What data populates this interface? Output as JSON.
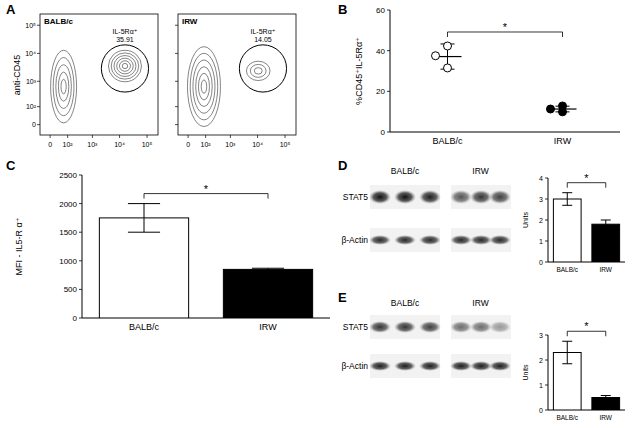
{
  "chart_data": [
    {
      "type": "scatter",
      "panel": "B",
      "categories": [
        "BALB/c",
        "IRW"
      ],
      "values": [
        37.1,
        11.3
      ],
      "errors": [
        6.2,
        1.4
      ],
      "points": [
        [
          42.3,
          37.5,
          31.5
        ],
        [
          12.8,
          11.3,
          9.9
        ]
      ],
      "colors": [
        "#ffffff",
        "#000000"
      ],
      "marker": "circle",
      "ylabel": "%CD45⁺IL-5Rα⁺",
      "ylim": [
        0,
        60
      ],
      "yticks": [
        0,
        20,
        40,
        60
      ],
      "annotations": [
        "*"
      ]
    },
    {
      "type": "bar",
      "panel": "C",
      "categories": [
        "BALB/c",
        "IRW"
      ],
      "values": [
        1750,
        850
      ],
      "errors": [
        250,
        20
      ],
      "colors": [
        "#ffffff",
        "#000000"
      ],
      "ylabel": "MFI - IL5-R α⁺",
      "ylim": [
        0,
        2500
      ],
      "yticks": [
        0,
        500,
        1000,
        1500,
        2000,
        2500
      ],
      "annotations": [
        "*"
      ]
    },
    {
      "type": "bar",
      "categories": [
        "BALB/c",
        "IRW"
      ],
      "values": [
        3.0,
        1.8
      ],
      "errors": [
        0.3,
        0.2
      ],
      "colors": [
        "#ffffff",
        "#000000"
      ],
      "ylabel": "Units",
      "ylim": [
        0,
        4
      ],
      "yticks": [
        0,
        1,
        2,
        3,
        4
      ],
      "annotations": [
        "*"
      ]
    },
    {
      "type": "bar",
      "categories": [
        "BALB/c",
        "IRW"
      ],
      "values": [
        2.3,
        0.5
      ],
      "errors": [
        0.45,
        0.08
      ],
      "colors": [
        "#ffffff",
        "#000000"
      ],
      "ylabel": "Units",
      "ylim": [
        0,
        3
      ],
      "yticks": [
        0,
        1,
        2,
        3
      ],
      "annotations": [
        "*"
      ]
    }
  ],
  "flow_cytometry": {
    "panel": "A",
    "ylabel": "anti-CD45",
    "log": true,
    "xlim": [
      -40,
      250000
    ],
    "ylim": [
      -40,
      250000
    ],
    "xticks": [
      {
        "value": 0,
        "label": "0"
      },
      {
        "value": 100,
        "label": "10²"
      },
      {
        "value": 1000,
        "label": "10³"
      },
      {
        "value": 10000,
        "label": "10⁴"
      },
      {
        "value": 100000,
        "label": "10⁵"
      }
    ],
    "yticks": [
      {
        "value": 0,
        "label": "0"
      },
      {
        "value": 100,
        "label": "10²"
      },
      {
        "value": 1000,
        "label": "10³"
      },
      {
        "value": 10000,
        "label": "10⁴"
      },
      {
        "value": 100000,
        "label": "10⁵"
      }
    ],
    "plots": [
      {
        "title": "BALB/c",
        "gate_label": "IL-5Rα⁺",
        "gate_value": 35.91
      },
      {
        "title": "IRW",
        "gate_label": "IL-5Rα⁺",
        "gate_value": 14.05
      }
    ]
  },
  "blots": [
    {
      "panel": "D",
      "groups": [
        "BALB/c",
        "IRW"
      ],
      "rows": [
        "STAT5",
        "β-Actin"
      ]
    },
    {
      "panel": "E",
      "groups": [
        "BALB/c",
        "IRW"
      ],
      "rows": [
        "STAT5",
        "β-Actin"
      ]
    }
  ]
}
